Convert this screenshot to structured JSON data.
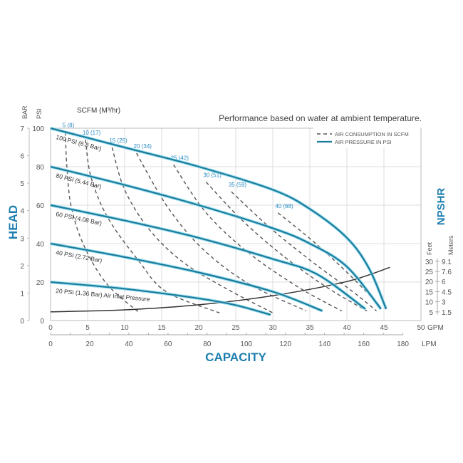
{
  "chart_data": {
    "type": "line",
    "note": "Performance based on water at ambient temperature.",
    "xlabel": "CAPACITY",
    "x_unit_primary": "GPM",
    "x_unit_secondary": "LPM",
    "xlim": [
      0,
      50
    ],
    "x_ticks": [
      0,
      5,
      10,
      15,
      20,
      25,
      30,
      35,
      40,
      45,
      50
    ],
    "x2_ticks": [
      0,
      20,
      40,
      60,
      80,
      100,
      120,
      140,
      160,
      180
    ],
    "ylabel": "HEAD",
    "y_unit_primary": "PSI",
    "y_unit_secondary": "BAR",
    "ylim": [
      0,
      100
    ],
    "y_ticks": [
      0,
      20,
      40,
      60,
      80,
      100
    ],
    "y2_ticks": [
      0,
      1,
      2,
      3,
      4,
      5,
      6,
      7
    ],
    "y_right_label": "NPSHR",
    "y_right_units": [
      "Feet",
      "Meters"
    ],
    "y_right_feet_ticks": [
      5,
      10,
      15,
      20,
      25,
      30
    ],
    "y_right_meter_ticks": [
      "1.5",
      "3",
      "4.5",
      "6",
      "7.6",
      "9.1"
    ],
    "air_flow_header": "SCFM (M³/hr)",
    "grid": true,
    "legend_position": "top-right",
    "legend": [
      {
        "label": "AIR CONSUMPTION IN SCFM",
        "style": "dashed"
      },
      {
        "label": "AIR PRESSURE IN PSI",
        "style": "solid"
      }
    ],
    "colors": {
      "pressure": "#1b7c9c",
      "glow": "#8fdcf0",
      "label": "#2a8cc4",
      "dashed": "#555555",
      "npshr": "#333333"
    },
    "pressure_series": [
      {
        "name": "100 PSI (6.8 Bar)",
        "points": [
          [
            0,
            100
          ],
          [
            10,
            90
          ],
          [
            20,
            80
          ],
          [
            30,
            68
          ],
          [
            35,
            58
          ],
          [
            40,
            43
          ],
          [
            43,
            27
          ],
          [
            45.3,
            6
          ]
        ]
      },
      {
        "name": "80 PSI (5.44 Bar)",
        "points": [
          [
            0,
            80
          ],
          [
            10,
            70.5
          ],
          [
            20,
            60
          ],
          [
            30,
            48
          ],
          [
            35,
            40
          ],
          [
            40,
            28
          ],
          [
            44.6,
            6
          ]
        ]
      },
      {
        "name": "60 PSI (4.08 Bar)",
        "points": [
          [
            0,
            60
          ],
          [
            10,
            52
          ],
          [
            20,
            43
          ],
          [
            30,
            32
          ],
          [
            36,
            24
          ],
          [
            42.5,
            6
          ]
        ]
      },
      {
        "name": "40 PSI (2.72 Bar)",
        "points": [
          [
            0,
            40
          ],
          [
            10,
            33
          ],
          [
            20,
            25
          ],
          [
            30,
            15
          ],
          [
            36.7,
            5
          ]
        ]
      },
      {
        "name": "20 PSI (1.36 Bar) Air Inlet Pressure",
        "points": [
          [
            0,
            20
          ],
          [
            10,
            16.5
          ],
          [
            20,
            11.5
          ],
          [
            25,
            8
          ],
          [
            29.7,
            3
          ]
        ]
      }
    ],
    "air_consumption_series": [
      {
        "name": "5 (8)",
        "points": [
          [
            2,
            98
          ],
          [
            2.2,
            80
          ],
          [
            2.8,
            59
          ],
          [
            4.5,
            39
          ],
          [
            7.6,
            19
          ],
          [
            12,
            4
          ]
        ]
      },
      {
        "name": "10 (17)",
        "points": [
          [
            4.7,
            94
          ],
          [
            5.5,
            74
          ],
          [
            7.8,
            53
          ],
          [
            11.9,
            31
          ],
          [
            15.6,
            15
          ],
          [
            22.8,
            4
          ]
        ]
      },
      {
        "name": "15 (25)",
        "points": [
          [
            8.3,
            90
          ],
          [
            10,
            68
          ],
          [
            13.4,
            47
          ],
          [
            18,
            30
          ],
          [
            24,
            16
          ],
          [
            30,
            4
          ]
        ]
      },
      {
        "name": "20 (34)",
        "points": [
          [
            11.6,
            87
          ],
          [
            15.8,
            59
          ],
          [
            20.6,
            37
          ],
          [
            26.8,
            19
          ],
          [
            34.5,
            5
          ]
        ]
      },
      {
        "name": "25 (42)",
        "points": [
          [
            16.6,
            81
          ],
          [
            21,
            56
          ],
          [
            26.8,
            35
          ],
          [
            33.6,
            17
          ],
          [
            39.3,
            5
          ]
        ]
      },
      {
        "name": "30 (51)",
        "points": [
          [
            21,
            72
          ],
          [
            25.9,
            52
          ],
          [
            31.6,
            33
          ],
          [
            37.4,
            17
          ],
          [
            42.7,
            5
          ]
        ]
      },
      {
        "name": "35 (59)",
        "points": [
          [
            24.4,
            67
          ],
          [
            29.7,
            48
          ],
          [
            35.5,
            30
          ],
          [
            40.8,
            15
          ],
          [
            44,
            5
          ]
        ]
      },
      {
        "name": "40 (68)",
        "points": [
          [
            30.7,
            56
          ],
          [
            35.5,
            41
          ],
          [
            40.3,
            24
          ],
          [
            44.6,
            7
          ]
        ]
      }
    ],
    "npshr_series": {
      "unit": "Feet",
      "points": [
        [
          0,
          5
        ],
        [
          10,
          6
        ],
        [
          20,
          8.5
        ],
        [
          30,
          13
        ],
        [
          40,
          20
        ],
        [
          45.8,
          27
        ]
      ]
    }
  }
}
